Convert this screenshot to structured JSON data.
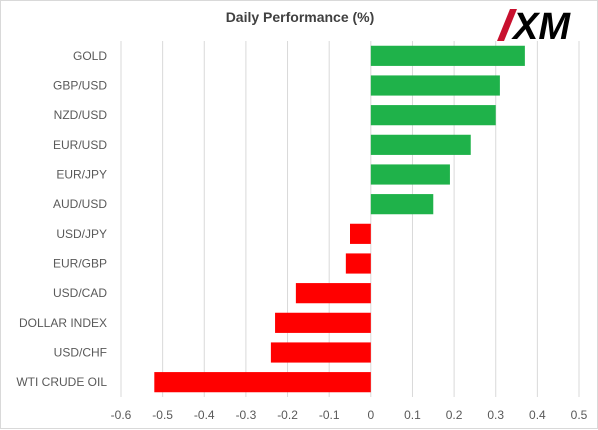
{
  "chart_data": {
    "type": "bar",
    "orientation": "horizontal",
    "title": "Daily Performance (%)",
    "categories": [
      "GOLD",
      "GBP/USD",
      "NZD/USD",
      "EUR/USD",
      "EUR/JPY",
      "AUD/USD",
      "USD/JPY",
      "EUR/GBP",
      "USD/CAD",
      "DOLLAR INDEX",
      "USD/CHF",
      "WTI CRUDE OIL"
    ],
    "values": [
      0.37,
      0.31,
      0.3,
      0.24,
      0.19,
      0.15,
      -0.05,
      -0.06,
      -0.18,
      -0.23,
      -0.24,
      -0.52
    ],
    "xlim": [
      -0.6,
      0.5
    ],
    "xticks": [
      -0.6,
      -0.5,
      -0.4,
      -0.3,
      -0.2,
      -0.1,
      0,
      0.1,
      0.2,
      0.3,
      0.4,
      0.5
    ],
    "xtick_labels": [
      "-0.6",
      "-0.5",
      "-0.4",
      "-0.3",
      "-0.2",
      "-0.1",
      "0",
      "0.1",
      "0.2",
      "0.3",
      "0.4",
      "0.5"
    ],
    "grid": "vertical",
    "legend": "none",
    "positive_color": "#1fb24a",
    "negative_color": "#ff0000"
  },
  "logo": {
    "text": "XM",
    "mark_color": "#c8102e",
    "text_color": "#000000"
  }
}
